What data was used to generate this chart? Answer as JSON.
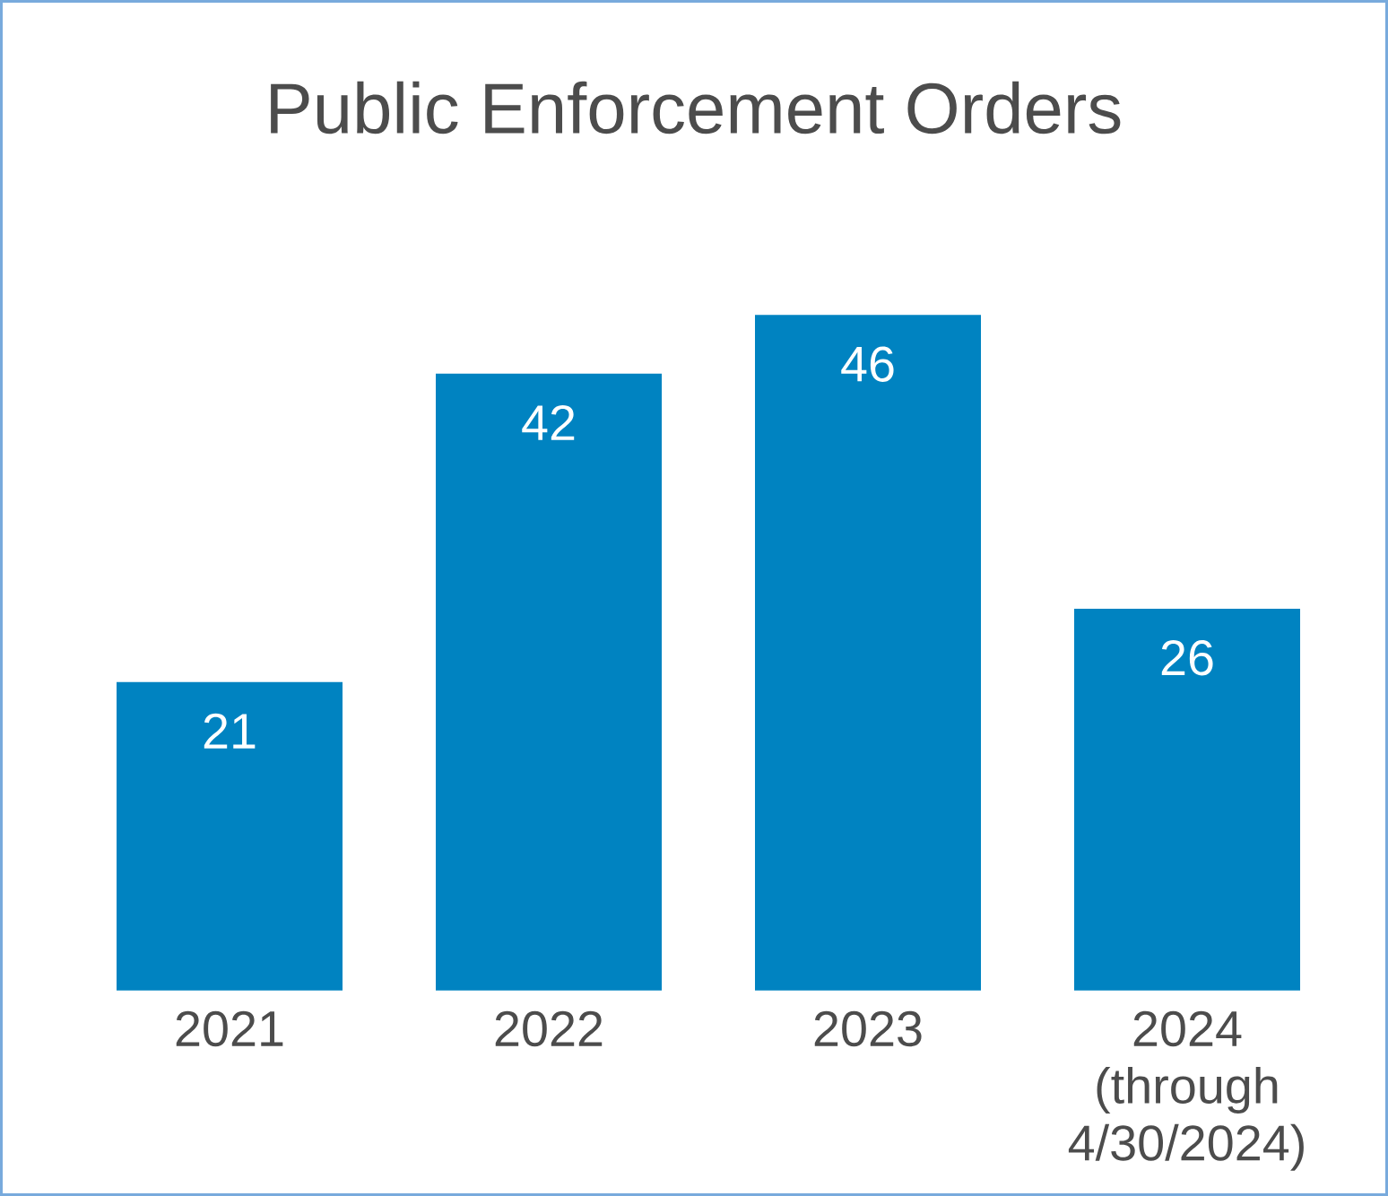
{
  "chart_data": {
    "type": "bar",
    "title": "Public Enforcement Orders",
    "categories": [
      "2021",
      "2022",
      "2023",
      "2024 (through 4/30/2024)"
    ],
    "values": [
      21,
      42,
      46,
      26
    ],
    "color": "#0083c1",
    "data_labels": true
  }
}
